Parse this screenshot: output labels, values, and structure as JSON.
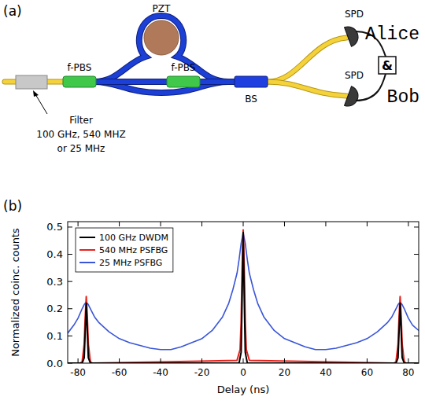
{
  "diagram": {
    "panel_label": "(a)",
    "pzt": "PZT",
    "pbs_in": "f-PBS",
    "pbs_out": "f-PBS",
    "bs": "BS",
    "spd_alice": "SPD",
    "spd_bob": "SPD",
    "coincidence": "&",
    "alice": "Alice",
    "bob": "Bob",
    "filter_label": [
      "Filter",
      "100 GHz, 540 MHZ",
      "or 25 MHz"
    ]
  },
  "chart_data": {
    "type": "line",
    "annotations": [
      "(b)"
    ],
    "x_label": "Delay (ns)",
    "y_label": "Normalized coinc. counts",
    "xlim": [
      -85,
      85
    ],
    "xticks": [
      -80,
      -60,
      -40,
      -20,
      0,
      20,
      40,
      60,
      80
    ],
    "ylim": [
      0,
      0.52
    ],
    "yticks": [
      {
        "value": 0,
        "label": "0.0"
      },
      0.1,
      0.2,
      0.3,
      0.4,
      0.5
    ],
    "grid": false,
    "legend": "upper left",
    "series": [
      {
        "name": "100 GHz DWDM",
        "color": "#000000",
        "x": [
          -85,
          -78,
          -77,
          -76.5,
          -76,
          -75.5,
          -75,
          -74,
          -2,
          -1,
          -0.5,
          0,
          0.5,
          1,
          2,
          74,
          75,
          75.5,
          76,
          76.5,
          77,
          78,
          85
        ],
        "values": [
          0,
          0,
          0.02,
          0.12,
          0.22,
          0.12,
          0.02,
          0,
          0,
          0.04,
          0.25,
          0.48,
          0.25,
          0.04,
          0,
          0,
          0.02,
          0.12,
          0.22,
          0.12,
          0.02,
          0,
          0
        ]
      },
      {
        "name": "540 MHz PSFBG",
        "color": "#e8211b",
        "x": [
          -85,
          -79,
          -78,
          -77,
          -76.5,
          -76,
          -75.5,
          -75,
          -74,
          -73,
          -3,
          -1.5,
          -1,
          -0.5,
          0,
          0.5,
          1,
          1.5,
          3,
          73,
          74,
          75,
          75.5,
          76,
          76.5,
          77,
          78,
          79,
          85
        ],
        "values": [
          0,
          0,
          0.005,
          0.07,
          0.17,
          0.245,
          0.17,
          0.07,
          0.005,
          0,
          0.01,
          0.05,
          0.15,
          0.35,
          0.49,
          0.35,
          0.15,
          0.05,
          0.01,
          0,
          0.005,
          0.07,
          0.17,
          0.245,
          0.17,
          0.07,
          0.005,
          0,
          0
        ]
      },
      {
        "name": "25 MHz PSFBG",
        "color": "#3a55d8",
        "x": [
          -85,
          -82,
          -80,
          -78,
          -77,
          -76,
          -75,
          -74,
          -72,
          -70,
          -65,
          -60,
          -55,
          -50,
          -45,
          -40,
          -35,
          -30,
          -25,
          -20,
          -15,
          -10,
          -7,
          -5,
          -3,
          -2,
          -1,
          0,
          1,
          2,
          3,
          5,
          7,
          10,
          15,
          20,
          25,
          30,
          35,
          40,
          45,
          50,
          55,
          60,
          65,
          70,
          72,
          74,
          75,
          76,
          77,
          78,
          80,
          82,
          85
        ],
        "values": [
          0.11,
          0.14,
          0.165,
          0.2,
          0.215,
          0.225,
          0.215,
          0.2,
          0.17,
          0.15,
          0.115,
          0.09,
          0.075,
          0.065,
          0.055,
          0.05,
          0.05,
          0.06,
          0.075,
          0.09,
          0.12,
          0.17,
          0.22,
          0.27,
          0.33,
          0.38,
          0.44,
          0.48,
          0.44,
          0.38,
          0.33,
          0.27,
          0.22,
          0.17,
          0.12,
          0.09,
          0.075,
          0.06,
          0.05,
          0.05,
          0.055,
          0.065,
          0.075,
          0.09,
          0.115,
          0.15,
          0.17,
          0.2,
          0.215,
          0.225,
          0.215,
          0.2,
          0.165,
          0.14,
          0.12
        ]
      }
    ]
  }
}
